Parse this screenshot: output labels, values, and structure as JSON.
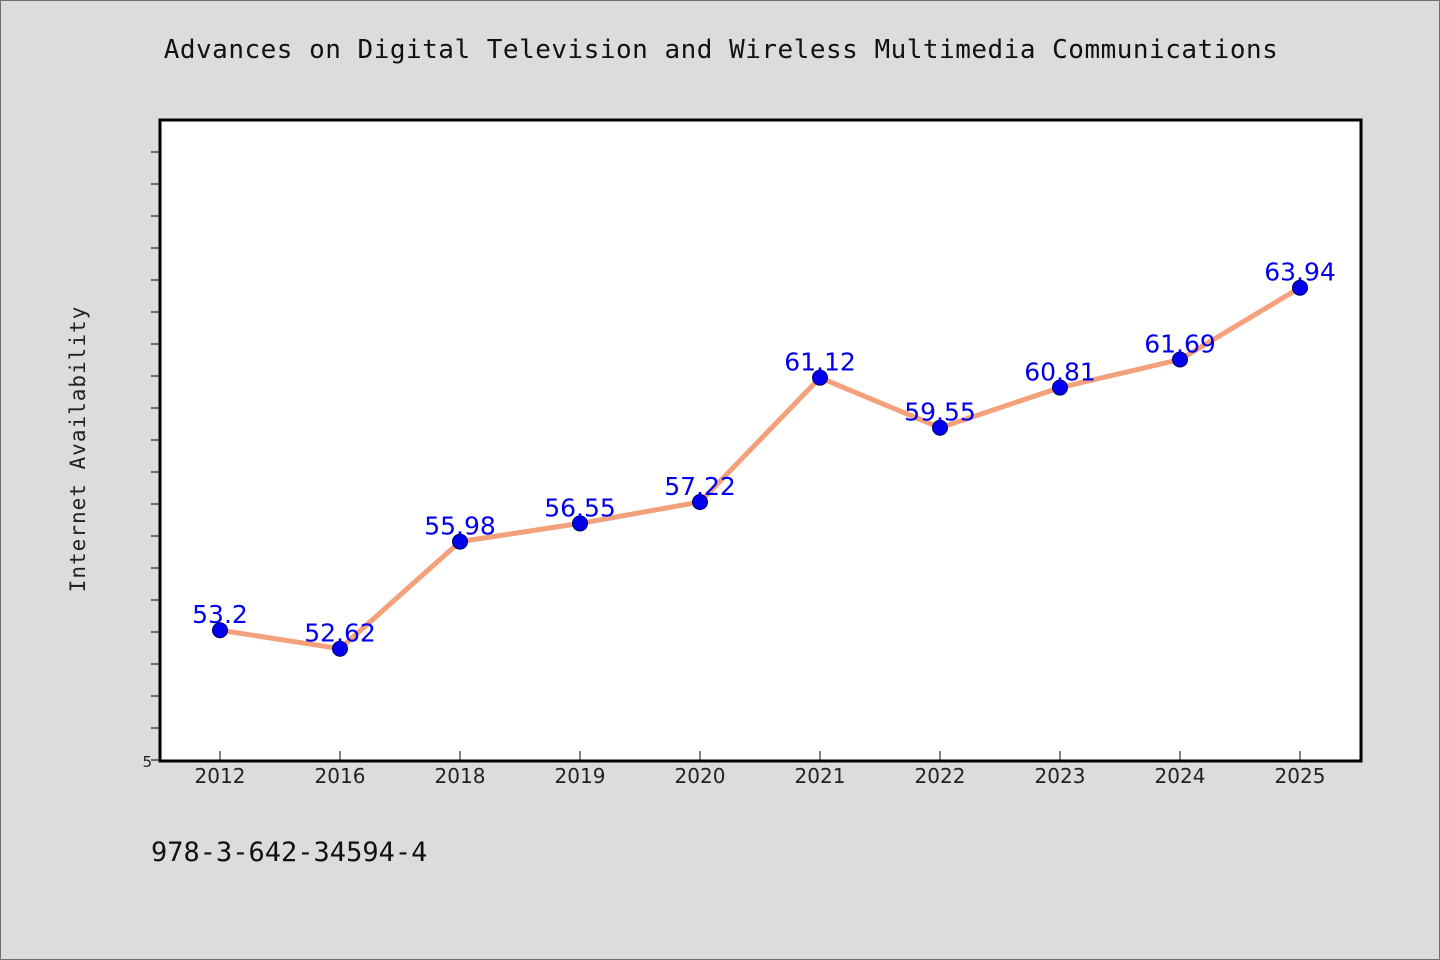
{
  "chart_data": {
    "type": "line",
    "title": "Advances on Digital Television and Wireless Multimedia Communications",
    "xlabel": "",
    "ylabel": "Internet Availability",
    "categories": [
      "2012",
      "2016",
      "2018",
      "2019",
      "2020",
      "2021",
      "2022",
      "2023",
      "2024",
      "2025"
    ],
    "series": [
      {
        "values": [
          53.2,
          52.62,
          55.98,
          56.55,
          57.22,
          61.12,
          59.55,
          60.81,
          61.69,
          63.94
        ],
        "data_labels": [
          "53.2",
          "52.62",
          "55.98",
          "56.55",
          "57.22",
          "61.12",
          "59.55",
          "60.81",
          "61.69",
          "63.94"
        ]
      }
    ],
    "y_tick_labels": [
      "5"
    ],
    "ylim": [
      49.1,
      69.2
    ],
    "grid": false,
    "legend": "none"
  },
  "footer": {
    "isbn": "978-3-642-34594-4"
  },
  "colors": {
    "background": "#dcdcdc",
    "plot_area": "#ffffff",
    "line": "#f4a07a",
    "marker": "#0000ee",
    "data_label": "#0000ee",
    "axis": "#000000"
  }
}
